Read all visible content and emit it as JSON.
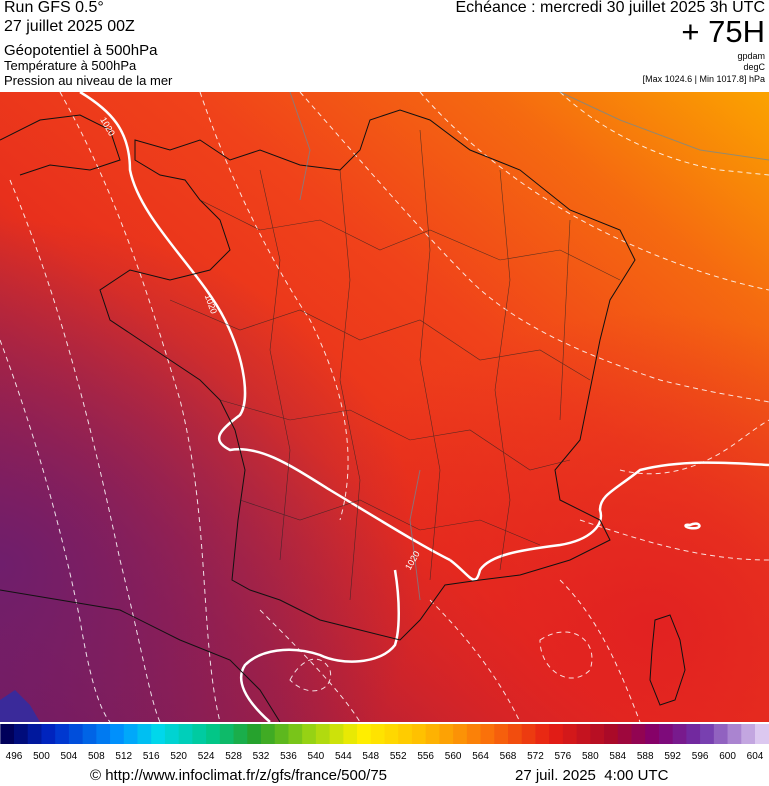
{
  "header": {
    "run": "Run GFS 0.5°",
    "run_date": "27 juillet 2025 00Z",
    "fields": [
      "Géopotentiel à 500hPa",
      "Température à 500hPa",
      "Pression au niveau de la mer"
    ],
    "forecast": "Echéance : mercredi 30 juillet 2025 3h UTC",
    "lead": "+ 75H",
    "units": [
      "gpdam",
      "degC",
      "[Max 1024.6 | Min 1017.8] hPa"
    ]
  },
  "map": {
    "isobar_labels": [
      "1020",
      "1020",
      "1020"
    ]
  },
  "colorbar": {
    "ticks": [
      496,
      500,
      504,
      508,
      512,
      516,
      520,
      524,
      528,
      532,
      536,
      540,
      544,
      548,
      552,
      556,
      560,
      564,
      568,
      572,
      576,
      580,
      584,
      588,
      592,
      596,
      600,
      604
    ]
  },
  "footer": {
    "source": "© http://www.infoclimat.fr/z/gfs/france/500/75",
    "timestamp": "27 juil. 2025  4:00 UTC"
  }
}
